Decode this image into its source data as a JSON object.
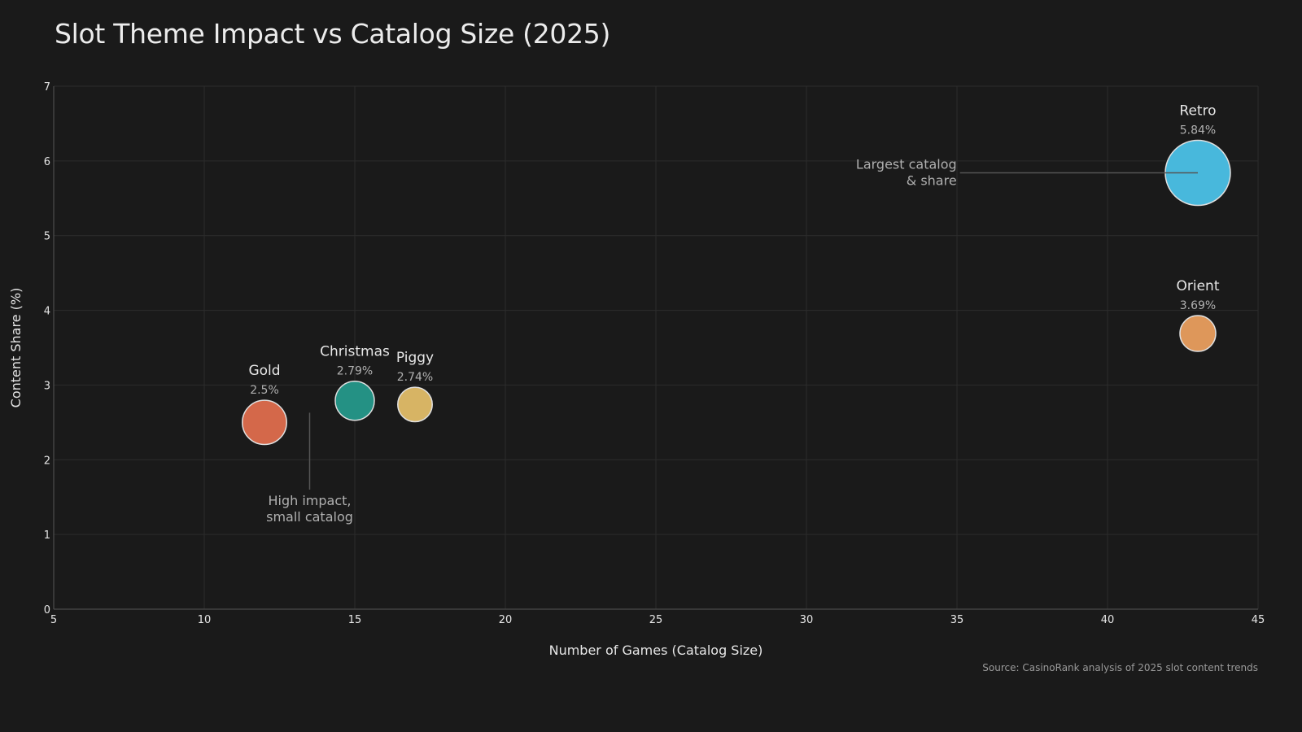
{
  "chart_data": {
    "type": "scatter",
    "subtype": "bubble",
    "title": "Slot Theme Impact vs Catalog Size (2025)",
    "xlabel": "Number of Games (Catalog Size)",
    "ylabel": "Content Share (%)",
    "xlim": [
      5,
      45
    ],
    "ylim": [
      0,
      7
    ],
    "xticks": [
      5,
      10,
      15,
      20,
      25,
      30,
      35,
      40,
      45
    ],
    "yticks": [
      0,
      1,
      2,
      3,
      4,
      5,
      6,
      7
    ],
    "grid": true,
    "points": [
      {
        "name": "Gold",
        "x": 12,
        "y": 2.5,
        "label": "2.5%",
        "color": "#d4684a",
        "size": 0.68
      },
      {
        "name": "Christmas",
        "x": 15,
        "y": 2.79,
        "label": "2.79%",
        "color": "#249184",
        "size": 0.6
      },
      {
        "name": "Piggy",
        "x": 17,
        "y": 2.74,
        "label": "2.74%",
        "color": "#d7b464",
        "size": 0.53
      },
      {
        "name": "Orient",
        "x": 43,
        "y": 3.69,
        "label": "3.69%",
        "color": "#de975a",
        "size": 0.55
      },
      {
        "name": "Retro",
        "x": 43,
        "y": 5.84,
        "label": "5.84%",
        "color": "#48b8dc",
        "size": 1.0
      }
    ],
    "annotations": [
      {
        "lines": [
          "High impact,",
          "small catalog"
        ],
        "x": 13.5,
        "y_from": 2.63,
        "y_to": 1.6,
        "direction": "vertical"
      },
      {
        "lines": [
          "Largest catalog",
          "& share"
        ],
        "x_from": 35.1,
        "x_to": 43,
        "y": 5.84,
        "direction": "horizontal"
      }
    ],
    "source": "Source: CasinoRank analysis of 2025 slot content trends"
  },
  "colors": {
    "background": "#1a1a1a",
    "grid": "#2c2c2c",
    "axis": "#555555",
    "text": "#e6e6e6",
    "muted": "#b0b0b0"
  }
}
